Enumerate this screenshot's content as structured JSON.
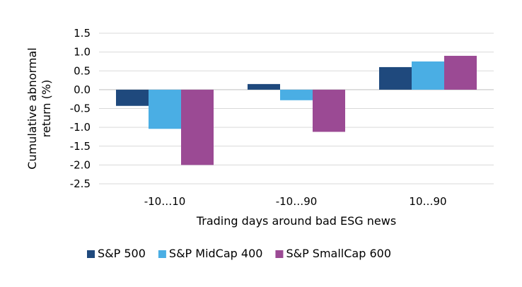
{
  "chart_data": {
    "type": "bar",
    "title": "",
    "xlabel": "Trading days around bad ESG news",
    "ylabel": "Cumulative abnormal return (%)",
    "ylabel_lines": [
      "Cumulative abnormal",
      "return (%)"
    ],
    "categories": [
      "-10…10",
      "-10…90",
      "10…90"
    ],
    "ylim": [
      -2.5,
      1.5
    ],
    "yticks": [
      1.5,
      1.0,
      0.5,
      0.0,
      -0.5,
      -1.0,
      -1.5,
      -2.0,
      -2.5
    ],
    "ytick_labels": [
      "1.5",
      "1.0",
      "0.5",
      "0.0",
      "-0.5",
      "-1.0",
      "-1.5",
      "-2.0",
      "-2.5"
    ],
    "grid": true,
    "legend_position": "bottom",
    "series": [
      {
        "name": "S&P 500",
        "color": "#1f497d",
        "values": [
          -0.43,
          0.15,
          0.6
        ]
      },
      {
        "name": "S&P MidCap 400",
        "color": "#4aaee4",
        "values": [
          -1.04,
          -0.28,
          0.75
        ]
      },
      {
        "name": "S&P SmallCap 600",
        "color": "#9b4a94",
        "values": [
          -2.0,
          -1.12,
          0.9
        ]
      }
    ]
  }
}
